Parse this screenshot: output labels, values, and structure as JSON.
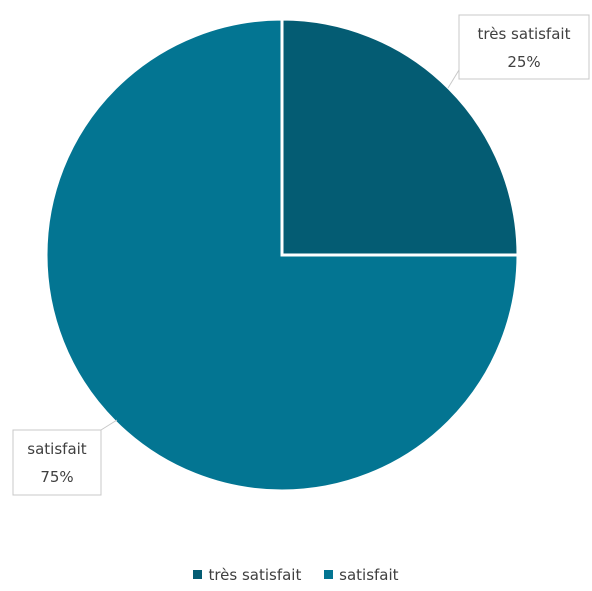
{
  "chart_data": {
    "type": "pie",
    "slices": [
      {
        "label": "très satisfait",
        "value": 25,
        "value_label": "25%",
        "color": "#045C73"
      },
      {
        "label": "satisfait",
        "value": 75,
        "value_label": "75%",
        "color": "#037592"
      }
    ],
    "legend": {
      "position": "bottom",
      "entries": [
        "très satisfait",
        "satisfait"
      ]
    }
  }
}
